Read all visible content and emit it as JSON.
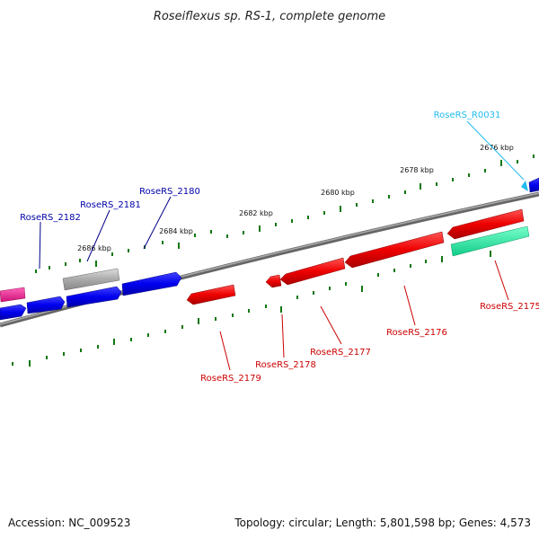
{
  "title": "Roseiflexus sp. RS-1, complete genome",
  "footer": {
    "accession": "Accession: NC_009523",
    "summary": "Topology: circular; Length: 5,801,598 bp; Genes: 4,573"
  },
  "kbp_labels": [
    "2676 kbp",
    "2678 kbp",
    "2680 kbp",
    "2682 kbp",
    "2684 kbp",
    "2686 kbp"
  ],
  "gene_labels": {
    "rna": "RoseRS_R0031",
    "g2182": "RoseRS_2182",
    "g2181": "RoseRS_2181",
    "g2180": "RoseRS_2180",
    "g2179": "RoseRS_2179",
    "g2178": "RoseRS_2178",
    "g2177": "RoseRS_2177",
    "g2176": "RoseRS_2176",
    "g2175": "RoseRS_2175"
  },
  "colors": {
    "forward_blue": "#0000ee",
    "reverse_red": "#ee0000",
    "pseudo_gray": "#aaaaaa",
    "pink": "#ee2288",
    "teal": "#22ee99",
    "rna_cyan": "#22bbee",
    "backbone": "#777777",
    "tick_green": "#117711"
  }
}
